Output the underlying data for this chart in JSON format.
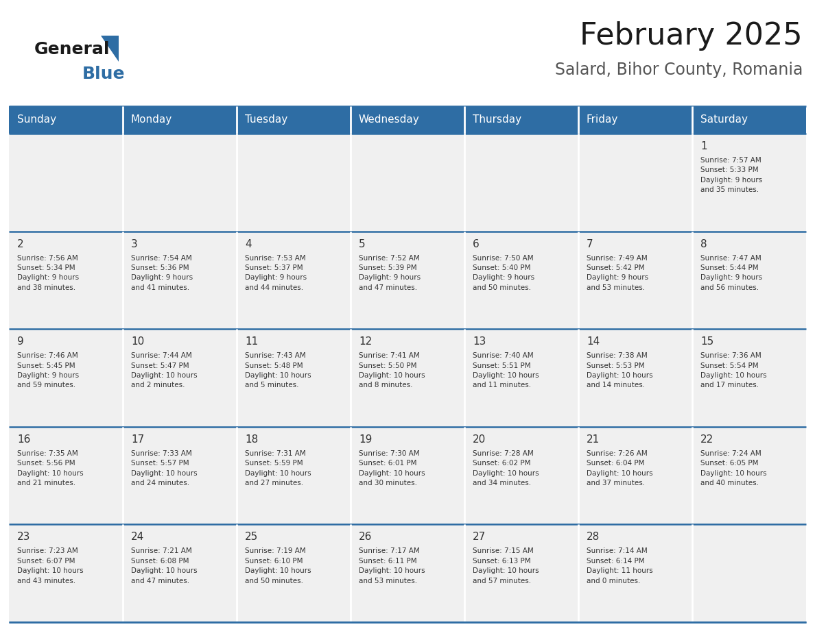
{
  "title": "February 2025",
  "subtitle": "Salard, Bihor County, Romania",
  "header_bg": "#2E6DA4",
  "header_text_color": "#FFFFFF",
  "cell_bg_light": "#F0F0F0",
  "border_color": "#2E6DA4",
  "text_color": "#333333",
  "day_headers": [
    "Sunday",
    "Monday",
    "Tuesday",
    "Wednesday",
    "Thursday",
    "Friday",
    "Saturday"
  ],
  "calendar_data": [
    [
      {
        "day": null,
        "info": null
      },
      {
        "day": null,
        "info": null
      },
      {
        "day": null,
        "info": null
      },
      {
        "day": null,
        "info": null
      },
      {
        "day": null,
        "info": null
      },
      {
        "day": null,
        "info": null
      },
      {
        "day": 1,
        "info": "Sunrise: 7:57 AM\nSunset: 5:33 PM\nDaylight: 9 hours\nand 35 minutes."
      }
    ],
    [
      {
        "day": 2,
        "info": "Sunrise: 7:56 AM\nSunset: 5:34 PM\nDaylight: 9 hours\nand 38 minutes."
      },
      {
        "day": 3,
        "info": "Sunrise: 7:54 AM\nSunset: 5:36 PM\nDaylight: 9 hours\nand 41 minutes."
      },
      {
        "day": 4,
        "info": "Sunrise: 7:53 AM\nSunset: 5:37 PM\nDaylight: 9 hours\nand 44 minutes."
      },
      {
        "day": 5,
        "info": "Sunrise: 7:52 AM\nSunset: 5:39 PM\nDaylight: 9 hours\nand 47 minutes."
      },
      {
        "day": 6,
        "info": "Sunrise: 7:50 AM\nSunset: 5:40 PM\nDaylight: 9 hours\nand 50 minutes."
      },
      {
        "day": 7,
        "info": "Sunrise: 7:49 AM\nSunset: 5:42 PM\nDaylight: 9 hours\nand 53 minutes."
      },
      {
        "day": 8,
        "info": "Sunrise: 7:47 AM\nSunset: 5:44 PM\nDaylight: 9 hours\nand 56 minutes."
      }
    ],
    [
      {
        "day": 9,
        "info": "Sunrise: 7:46 AM\nSunset: 5:45 PM\nDaylight: 9 hours\nand 59 minutes."
      },
      {
        "day": 10,
        "info": "Sunrise: 7:44 AM\nSunset: 5:47 PM\nDaylight: 10 hours\nand 2 minutes."
      },
      {
        "day": 11,
        "info": "Sunrise: 7:43 AM\nSunset: 5:48 PM\nDaylight: 10 hours\nand 5 minutes."
      },
      {
        "day": 12,
        "info": "Sunrise: 7:41 AM\nSunset: 5:50 PM\nDaylight: 10 hours\nand 8 minutes."
      },
      {
        "day": 13,
        "info": "Sunrise: 7:40 AM\nSunset: 5:51 PM\nDaylight: 10 hours\nand 11 minutes."
      },
      {
        "day": 14,
        "info": "Sunrise: 7:38 AM\nSunset: 5:53 PM\nDaylight: 10 hours\nand 14 minutes."
      },
      {
        "day": 15,
        "info": "Sunrise: 7:36 AM\nSunset: 5:54 PM\nDaylight: 10 hours\nand 17 minutes."
      }
    ],
    [
      {
        "day": 16,
        "info": "Sunrise: 7:35 AM\nSunset: 5:56 PM\nDaylight: 10 hours\nand 21 minutes."
      },
      {
        "day": 17,
        "info": "Sunrise: 7:33 AM\nSunset: 5:57 PM\nDaylight: 10 hours\nand 24 minutes."
      },
      {
        "day": 18,
        "info": "Sunrise: 7:31 AM\nSunset: 5:59 PM\nDaylight: 10 hours\nand 27 minutes."
      },
      {
        "day": 19,
        "info": "Sunrise: 7:30 AM\nSunset: 6:01 PM\nDaylight: 10 hours\nand 30 minutes."
      },
      {
        "day": 20,
        "info": "Sunrise: 7:28 AM\nSunset: 6:02 PM\nDaylight: 10 hours\nand 34 minutes."
      },
      {
        "day": 21,
        "info": "Sunrise: 7:26 AM\nSunset: 6:04 PM\nDaylight: 10 hours\nand 37 minutes."
      },
      {
        "day": 22,
        "info": "Sunrise: 7:24 AM\nSunset: 6:05 PM\nDaylight: 10 hours\nand 40 minutes."
      }
    ],
    [
      {
        "day": 23,
        "info": "Sunrise: 7:23 AM\nSunset: 6:07 PM\nDaylight: 10 hours\nand 43 minutes."
      },
      {
        "day": 24,
        "info": "Sunrise: 7:21 AM\nSunset: 6:08 PM\nDaylight: 10 hours\nand 47 minutes."
      },
      {
        "day": 25,
        "info": "Sunrise: 7:19 AM\nSunset: 6:10 PM\nDaylight: 10 hours\nand 50 minutes."
      },
      {
        "day": 26,
        "info": "Sunrise: 7:17 AM\nSunset: 6:11 PM\nDaylight: 10 hours\nand 53 minutes."
      },
      {
        "day": 27,
        "info": "Sunrise: 7:15 AM\nSunset: 6:13 PM\nDaylight: 10 hours\nand 57 minutes."
      },
      {
        "day": 28,
        "info": "Sunrise: 7:14 AM\nSunset: 6:14 PM\nDaylight: 11 hours\nand 0 minutes."
      },
      {
        "day": null,
        "info": null
      }
    ]
  ]
}
